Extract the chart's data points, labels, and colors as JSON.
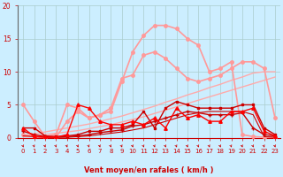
{
  "background_color": "#cceeff",
  "grid_color": "#aacccc",
  "xlabel": "Vent moyen/en rafales ( km/h )",
  "xlabel_color": "#cc0000",
  "tick_color": "#cc0000",
  "xlim": [
    -0.5,
    23.5
  ],
  "ylim": [
    0,
    20
  ],
  "yticks": [
    0,
    5,
    10,
    15,
    20
  ],
  "xticks": [
    0,
    1,
    2,
    3,
    4,
    5,
    6,
    7,
    8,
    9,
    10,
    11,
    12,
    13,
    14,
    15,
    16,
    17,
    18,
    19,
    20,
    21,
    22,
    23
  ],
  "series": [
    {
      "x": [
        0,
        1,
        2,
        3,
        4,
        5,
        6,
        7,
        8,
        9,
        10,
        11,
        12,
        13,
        14,
        15,
        16,
        17,
        18,
        19,
        20,
        21,
        22,
        23
      ],
      "y": [
        0.2,
        0.3,
        0.5,
        0.7,
        0.9,
        1.1,
        1.4,
        1.7,
        2.0,
        2.4,
        2.8,
        3.2,
        3.7,
        4.2,
        4.7,
        5.2,
        5.7,
        6.2,
        6.7,
        7.2,
        7.7,
        8.2,
        8.7,
        9.2
      ],
      "color": "#ffaaaa",
      "lw": 1.0,
      "marker": null,
      "markersize": 0,
      "alpha": 1.0,
      "zorder": 2
    },
    {
      "x": [
        0,
        1,
        2,
        3,
        4,
        5,
        6,
        7,
        8,
        9,
        10,
        11,
        12,
        13,
        14,
        15,
        16,
        17,
        18,
        19,
        20,
        21,
        22,
        23
      ],
      "y": [
        0.4,
        0.6,
        0.9,
        1.2,
        1.5,
        1.8,
        2.1,
        2.5,
        2.9,
        3.3,
        3.8,
        4.3,
        4.8,
        5.4,
        5.9,
        6.5,
        7.0,
        7.6,
        8.1,
        8.7,
        9.2,
        9.8,
        10.0,
        10.0
      ],
      "color": "#ffaaaa",
      "lw": 1.0,
      "marker": null,
      "markersize": 0,
      "alpha": 1.0,
      "zorder": 2
    },
    {
      "x": [
        0,
        1,
        2,
        3,
        4,
        5,
        6,
        7,
        8,
        9,
        10,
        11,
        12,
        13,
        14,
        15,
        16,
        17,
        18,
        19,
        20,
        21,
        22,
        23
      ],
      "y": [
        5.0,
        2.5,
        0.2,
        0.5,
        5.0,
        4.5,
        3.0,
        3.5,
        4.0,
        8.5,
        13.0,
        15.5,
        17.0,
        17.0,
        16.5,
        15.0,
        14.0,
        10.0,
        10.5,
        11.5,
        0.5,
        0.2,
        0.1,
        0.1
      ],
      "color": "#ff9999",
      "lw": 1.2,
      "marker": "o",
      "markersize": 2.5,
      "alpha": 1.0,
      "zorder": 3
    },
    {
      "x": [
        0,
        1,
        2,
        3,
        4,
        5,
        6,
        7,
        8,
        9,
        10,
        11,
        12,
        13,
        14,
        15,
        16,
        17,
        18,
        19,
        20,
        21,
        22,
        23
      ],
      "y": [
        0.5,
        0.2,
        0.1,
        0.1,
        2.5,
        4.0,
        3.0,
        3.5,
        4.5,
        9.0,
        9.5,
        12.5,
        13.0,
        12.0,
        10.5,
        9.0,
        8.5,
        9.0,
        9.5,
        10.5,
        11.5,
        11.5,
        10.5,
        3.0
      ],
      "color": "#ff9999",
      "lw": 1.2,
      "marker": "o",
      "markersize": 2.5,
      "alpha": 1.0,
      "zorder": 3
    },
    {
      "x": [
        0,
        1,
        2,
        3,
        4,
        5,
        6,
        7,
        8,
        9,
        10,
        11,
        12,
        13,
        14,
        15,
        16,
        17,
        18,
        19,
        20,
        21,
        22,
        23
      ],
      "y": [
        1.5,
        1.5,
        0.3,
        0.2,
        0.3,
        0.5,
        1.0,
        1.0,
        1.5,
        1.5,
        2.0,
        4.0,
        1.5,
        4.5,
        5.5,
        5.0,
        4.5,
        4.5,
        4.5,
        4.5,
        5.0,
        5.0,
        1.5,
        0.5
      ],
      "color": "#cc0000",
      "lw": 1.0,
      "marker": "s",
      "markersize": 2.0,
      "alpha": 1.0,
      "zorder": 4
    },
    {
      "x": [
        0,
        1,
        2,
        3,
        4,
        5,
        6,
        7,
        8,
        9,
        10,
        11,
        12,
        13,
        14,
        15,
        16,
        17,
        18,
        19,
        20,
        21,
        22,
        23
      ],
      "y": [
        1.0,
        0.5,
        0.2,
        0.1,
        0.2,
        0.3,
        0.5,
        0.8,
        1.0,
        1.2,
        1.8,
        2.0,
        2.5,
        3.0,
        3.5,
        4.0,
        3.8,
        3.5,
        3.5,
        3.5,
        3.8,
        1.5,
        0.5,
        0.3
      ],
      "color": "#cc0000",
      "lw": 1.0,
      "marker": "+",
      "markersize": 3.0,
      "alpha": 1.0,
      "zorder": 4
    },
    {
      "x": [
        0,
        1,
        2,
        3,
        4,
        5,
        6,
        7,
        8,
        9,
        10,
        11,
        12,
        13,
        14,
        15,
        16,
        17,
        18,
        19,
        20,
        21,
        22,
        23
      ],
      "y": [
        0.3,
        0.2,
        0.1,
        0.1,
        0.1,
        0.2,
        0.3,
        0.5,
        0.7,
        0.9,
        1.2,
        1.5,
        2.0,
        2.5,
        3.0,
        3.5,
        3.8,
        4.0,
        4.0,
        4.0,
        4.0,
        3.5,
        0.2,
        0.1
      ],
      "color": "#cc0000",
      "lw": 0.8,
      "marker": null,
      "markersize": 0,
      "alpha": 1.0,
      "zorder": 3
    },
    {
      "x": [
        0,
        1,
        2,
        3,
        4,
        5,
        6,
        7,
        8,
        9,
        10,
        11,
        12,
        13,
        14,
        15,
        16,
        17,
        18,
        19,
        20,
        21,
        22,
        23
      ],
      "y": [
        1.5,
        0.2,
        0.1,
        0.1,
        0.5,
        5.0,
        4.5,
        2.5,
        2.0,
        2.0,
        2.5,
        2.0,
        3.0,
        1.5,
        4.5,
        3.0,
        3.5,
        2.5,
        2.5,
        4.0,
        4.0,
        4.5,
        1.0,
        0.3
      ],
      "color": "#ff0000",
      "lw": 1.0,
      "marker": "^",
      "markersize": 2.5,
      "alpha": 1.0,
      "zorder": 5
    }
  ]
}
